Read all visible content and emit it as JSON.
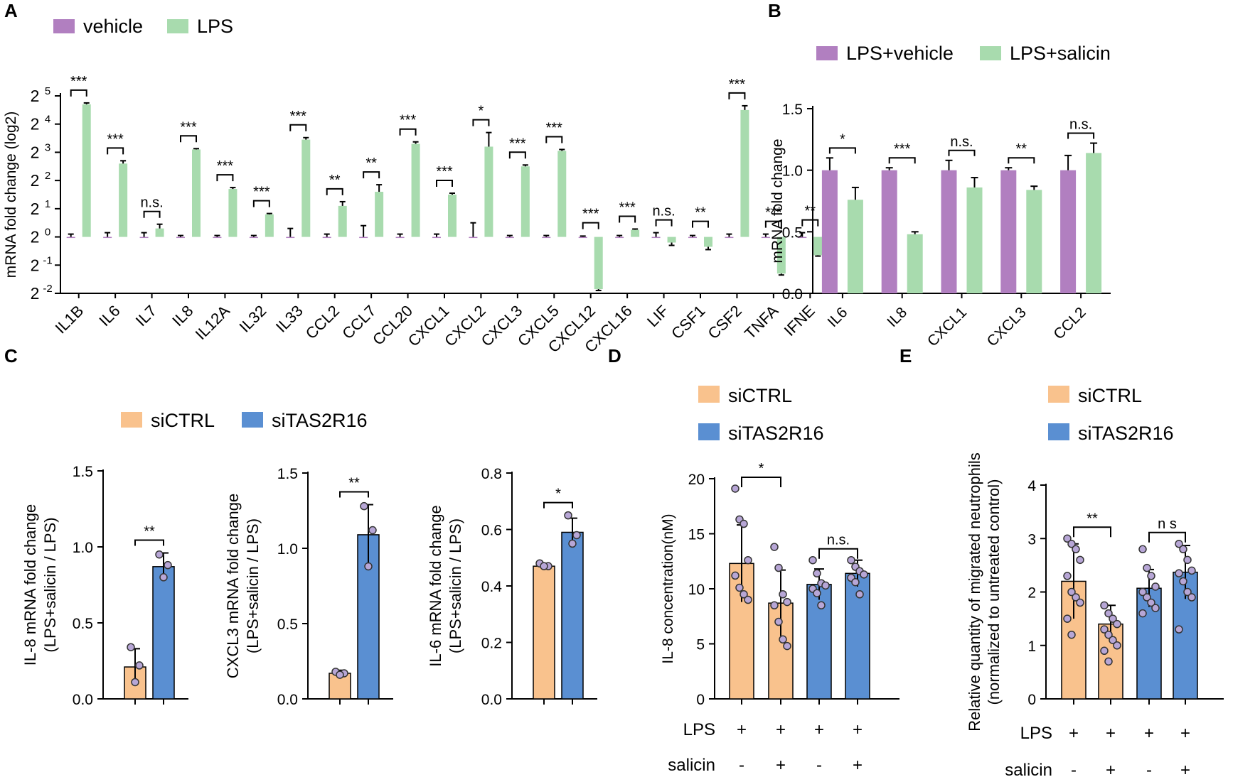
{
  "colors": {
    "vehicle": "#b17fc0",
    "lps": "#a8dbae",
    "sictrl": "#f9c28d",
    "sitas2r16": "#5a8fd2",
    "point_fill": "#b7a6d6"
  },
  "panels": {
    "A": "A",
    "B": "B",
    "C": "C",
    "D": "D",
    "E": "E"
  },
  "chart_data": [
    {
      "id": "A",
      "type": "bar",
      "title": "",
      "ylabel": "mRNA fold change (log2)",
      "yscale": "log2",
      "ylim_exp": [
        -2,
        5
      ],
      "yticks": [
        {
          "base": "2",
          "exp": "5"
        },
        {
          "base": "2",
          "exp": "4"
        },
        {
          "base": "2",
          "exp": "3"
        },
        {
          "base": "2",
          "exp": "2"
        },
        {
          "base": "2",
          "exp": "1"
        },
        {
          "base": "2",
          "exp": "0"
        },
        {
          "base": "2",
          "exp": "-1"
        },
        {
          "base": "2",
          "exp": "-2"
        }
      ],
      "categories": [
        "IL1B",
        "IL6",
        "IL7",
        "IL8",
        "IL12A",
        "IL32",
        "IL33",
        "CCL2",
        "CCL7",
        "CCL20",
        "CXCL1",
        "CXCL2",
        "CXCL3",
        "CXCL5",
        "CXCL12",
        "CXCL16",
        "LIF",
        "CSF1",
        "CSF2",
        "TNFA",
        "IFNE"
      ],
      "series": [
        {
          "name": "vehicle",
          "values": [
            0,
            0,
            0,
            0,
            0,
            0,
            0,
            0,
            0,
            0,
            0,
            0,
            0,
            0,
            0,
            0,
            0,
            0,
            0,
            0,
            0
          ],
          "errors": [
            0.1,
            0.15,
            0.15,
            0.05,
            0.05,
            0.05,
            0.3,
            0.1,
            0.4,
            0.1,
            0.1,
            0.5,
            0.05,
            0.05,
            0.03,
            0.05,
            0.15,
            0.05,
            0.1,
            0.1,
            0.15
          ]
        },
        {
          "name": "LPS",
          "values": [
            4.7,
            2.6,
            0.3,
            3.1,
            1.7,
            0.8,
            3.45,
            1.1,
            1.6,
            3.3,
            1.5,
            3.2,
            2.5,
            3.05,
            -1.85,
            0.25,
            -0.2,
            -0.35,
            4.5,
            -1.3,
            -0.65
          ],
          "errors": [
            0.05,
            0.1,
            0.15,
            0.03,
            0.05,
            0.03,
            0.07,
            0.15,
            0.25,
            0.07,
            0.05,
            0.5,
            0.05,
            0.05,
            0.05,
            0.03,
            0.1,
            0.1,
            0.15,
            0.05,
            0.03
          ]
        }
      ],
      "significance": [
        "***",
        "***",
        "n.s.",
        "***",
        "***",
        "***",
        "***",
        "**",
        "**",
        "***",
        "***",
        "*",
        "***",
        "***",
        "***",
        "***",
        "n.s.",
        "**",
        "***",
        "***",
        "**"
      ]
    },
    {
      "id": "B",
      "type": "bar",
      "ylabel": "mRNA fold change",
      "ylim": [
        0,
        1.5
      ],
      "yticks": [
        "0.0",
        "0.5",
        "1.0",
        "1.5"
      ],
      "categories": [
        "IL6",
        "IL8",
        "CXCL1",
        "CXCL3",
        "CCL2"
      ],
      "series": [
        {
          "name": "LPS+vehicle",
          "values": [
            1.0,
            1.0,
            1.0,
            1.0,
            1.0
          ],
          "errors": [
            0.1,
            0.02,
            0.08,
            0.02,
            0.12
          ]
        },
        {
          "name": "LPS+salicin",
          "values": [
            0.76,
            0.48,
            0.86,
            0.84,
            1.14
          ],
          "errors": [
            0.1,
            0.02,
            0.08,
            0.03,
            0.08
          ]
        }
      ],
      "significance": [
        "*",
        "***",
        "n.s.",
        "**",
        "n.s."
      ]
    },
    {
      "id": "C1",
      "type": "bar",
      "ylabel_lines": [
        "IL-8 mRNA fold change",
        "(LPS+salicin / LPS)"
      ],
      "ylim": [
        0,
        1.5
      ],
      "yticks": [
        "0.0",
        "0.5",
        "1.0",
        "1.5"
      ],
      "categories": [
        "siCTRL",
        "siTAS2R16"
      ],
      "values": [
        0.21,
        0.87
      ],
      "errors": [
        0.12,
        0.09
      ],
      "points": [
        [
          0.34,
          0.22,
          0.11
        ],
        [
          0.95,
          0.88,
          0.8
        ]
      ],
      "significance": "**"
    },
    {
      "id": "C2",
      "type": "bar",
      "ylabel_lines": [
        "CXCL3  mRNA fold change",
        "(LPS+salicin / LPS)"
      ],
      "ylim": [
        0,
        1.5
      ],
      "yticks": [
        "0.0",
        "0.5",
        "1.0",
        "1.5"
      ],
      "categories": [
        "siCTRL",
        "siTAS2R16"
      ],
      "values": [
        0.17,
        1.09
      ],
      "errors": [
        0.02,
        0.2
      ],
      "points": [
        [
          0.18,
          0.17,
          0.16
        ],
        [
          1.28,
          1.12,
          0.88
        ]
      ],
      "significance": "**"
    },
    {
      "id": "C3",
      "type": "bar",
      "ylabel_lines": [
        "IL-6 mRNA fold change",
        "(LPS+salicin / LPS)"
      ],
      "ylim": [
        0,
        0.8
      ],
      "yticks": [
        "0.0",
        "0.2",
        "0.4",
        "0.6",
        "0.8"
      ],
      "categories": [
        "siCTRL",
        "siTAS2R16"
      ],
      "values": [
        0.47,
        0.59
      ],
      "errors": [
        0.01,
        0.05
      ],
      "points": [
        [
          0.48,
          0.47,
          0.47
        ],
        [
          0.65,
          0.58,
          0.55
        ]
      ],
      "significance": "*"
    },
    {
      "id": "D",
      "type": "bar",
      "ylabel": "IL-8 concentration(nM)",
      "ylim": [
        0,
        20
      ],
      "yticks": [
        "0",
        "5",
        "10",
        "15",
        "20"
      ],
      "groups": [
        "siCTRL",
        "siCTRL",
        "siTAS2R16",
        "siTAS2R16"
      ],
      "values": [
        12.3,
        8.7,
        10.4,
        11.4
      ],
      "errors": [
        3.5,
        3.0,
        1.4,
        1.2
      ],
      "points": [
        [
          19.1,
          16.3,
          15.9,
          12.6,
          11.2,
          10.1,
          9.5,
          9.0
        ],
        [
          13.8,
          11.9,
          9.5,
          8.8,
          8.5,
          7.0,
          5.4,
          4.8
        ],
        [
          12.6,
          11.4,
          10.5,
          10.3,
          10.0,
          9.6,
          8.5
        ],
        [
          12.6,
          12.0,
          11.6,
          11.3,
          11.0,
          10.6,
          9.5
        ]
      ],
      "brackets": [
        {
          "between": [
            0,
            1
          ],
          "label": "*"
        },
        {
          "between": [
            2,
            3
          ],
          "label": "n.s."
        }
      ],
      "row_labels": [
        "LPS",
        "salicin"
      ],
      "lps_signs": [
        "+",
        "+",
        "+",
        "+"
      ],
      "salicin_signs": [
        "-",
        "+",
        "-",
        "+"
      ]
    },
    {
      "id": "E",
      "type": "bar",
      "ylabel_lines": [
        "Relative quantity of migrated neutrophils",
        "(normalized to untreated control)"
      ],
      "ylim": [
        0,
        4
      ],
      "yticks": [
        "0",
        "1",
        "2",
        "3",
        "4"
      ],
      "groups": [
        "siCTRL",
        "siCTRL",
        "siTAS2R16",
        "siTAS2R16"
      ],
      "values": [
        2.2,
        1.4,
        2.07,
        2.37
      ],
      "errors": [
        0.7,
        0.35,
        0.35,
        0.5
      ],
      "points": [
        [
          3.0,
          2.9,
          2.8,
          2.6,
          2.3,
          2.0,
          1.9,
          1.8,
          1.5,
          1.2
        ],
        [
          1.75,
          1.6,
          1.5,
          1.4,
          1.3,
          1.2,
          1.1,
          1.0,
          0.9,
          0.7
        ],
        [
          2.8,
          2.45,
          2.3,
          2.1,
          2.0,
          1.9,
          1.8,
          1.7,
          1.6
        ],
        [
          2.9,
          2.8,
          2.6,
          2.4,
          2.35,
          2.2,
          2.0,
          1.9,
          1.3
        ]
      ],
      "brackets": [
        {
          "between": [
            0,
            1
          ],
          "label": "**"
        },
        {
          "between": [
            2,
            3
          ],
          "label": "n s"
        }
      ],
      "row_labels": [
        "LPS",
        "salicin"
      ],
      "lps_signs": [
        "+",
        "+",
        "+",
        "+"
      ],
      "salicin_signs": [
        "-",
        "+",
        "-",
        "+"
      ]
    }
  ],
  "legends": {
    "A": [
      "vehicle",
      "LPS"
    ],
    "B": [
      "LPS+vehicle",
      "LPS+salicin"
    ],
    "C": [
      "siCTRL",
      "siTAS2R16"
    ],
    "D": [
      "siCTRL",
      "siTAS2R16"
    ],
    "E": [
      "siCTRL",
      "siTAS2R16"
    ]
  }
}
